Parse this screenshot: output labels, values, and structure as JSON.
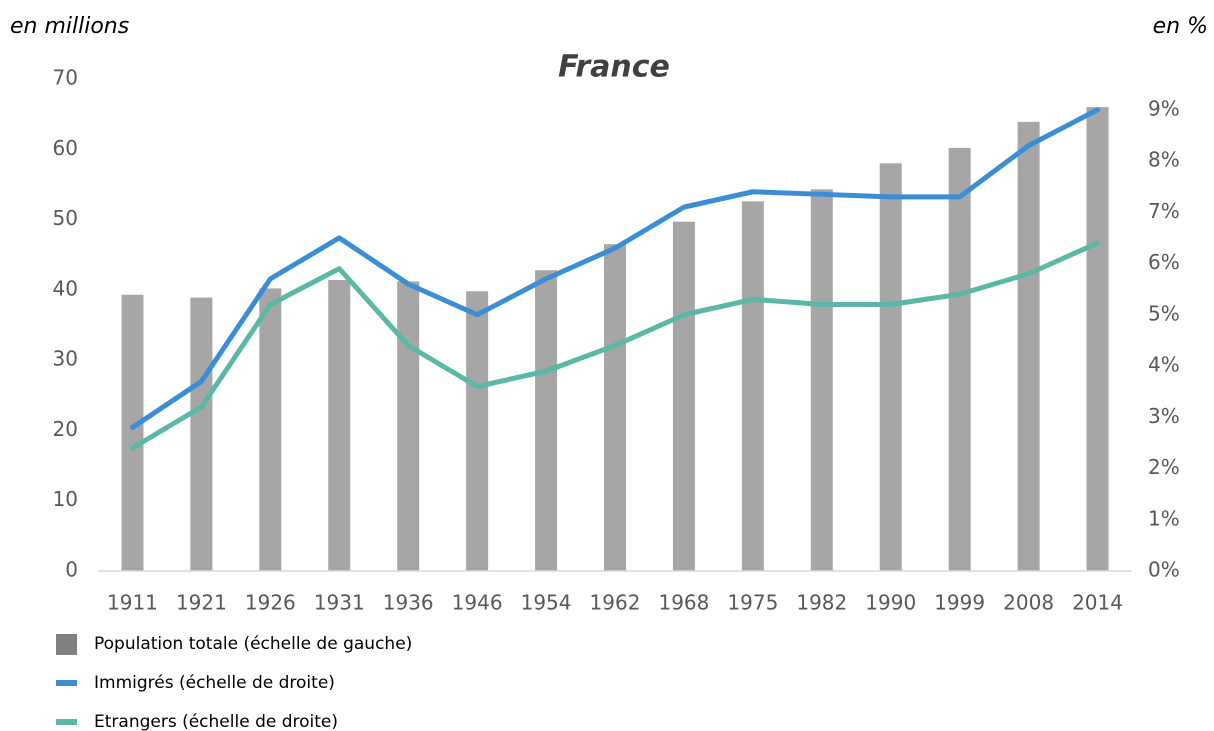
{
  "chart_data": {
    "type": "bar_line",
    "title": "France",
    "ylabel": "en millions",
    "y2label": "en %",
    "categories": [
      "1911",
      "1921",
      "1926",
      "1931",
      "1936",
      "1946",
      "1954",
      "1962",
      "1968",
      "1975",
      "1982",
      "1990",
      "1999",
      "2008",
      "2014"
    ],
    "series": [
      {
        "name": "Population totale (échelle de gauche)",
        "color": "#a6a6a6",
        "kind": "bar",
        "axis": "y",
        "values": [
          39.3,
          38.9,
          40.2,
          41.4,
          41.2,
          39.8,
          42.8,
          46.5,
          49.7,
          52.6,
          54.3,
          58.0,
          60.2,
          63.9,
          66.0
        ]
      },
      {
        "name": "Immigrés (échelle de droite)",
        "color": "#3b8ed4",
        "kind": "line",
        "axis": "y2",
        "values": [
          2.8,
          3.7,
          5.7,
          6.5,
          5.6,
          5.0,
          5.7,
          6.3,
          7.1,
          7.4,
          7.35,
          7.3,
          7.3,
          8.3,
          9.0
        ]
      },
      {
        "name": "Etrangers (échelle de droite)",
        "color": "#5bb8a6",
        "kind": "line",
        "axis": "y2",
        "values": [
          2.4,
          3.2,
          5.2,
          5.9,
          4.4,
          3.6,
          3.9,
          4.4,
          5.0,
          5.3,
          5.2,
          5.2,
          5.4,
          5.8,
          6.4
        ]
      }
    ],
    "ylim": [
      0,
      70
    ],
    "yticks": [
      0,
      10,
      20,
      30,
      40,
      50,
      60,
      70
    ],
    "y2lim": [
      0,
      9.6
    ],
    "y2ticks": [
      {
        "value": 0,
        "label": "0%"
      },
      {
        "value": 1,
        "label": "1%"
      },
      {
        "value": 2,
        "label": "2%"
      },
      {
        "value": 3,
        "label": "3%"
      },
      {
        "value": 4,
        "label": "4%"
      },
      {
        "value": 5,
        "label": "5%"
      },
      {
        "value": 6,
        "label": "6%"
      },
      {
        "value": 7,
        "label": "7%"
      },
      {
        "value": 8,
        "label": "8%"
      },
      {
        "value": 9,
        "label": "9%"
      }
    ],
    "grid": false
  }
}
